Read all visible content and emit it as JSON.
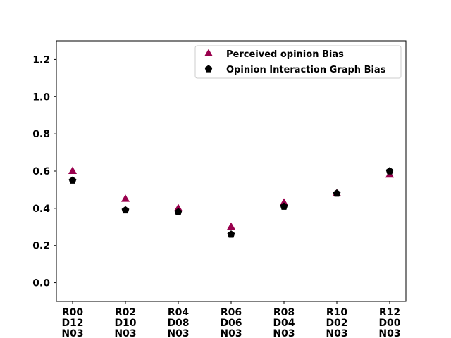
{
  "chart_data": {
    "type": "scatter",
    "categories": [
      [
        "R00",
        "D12",
        "N03"
      ],
      [
        "R02",
        "D10",
        "N03"
      ],
      [
        "R04",
        "D08",
        "N03"
      ],
      [
        "R06",
        "D06",
        "N03"
      ],
      [
        "R08",
        "D04",
        "N03"
      ],
      [
        "R10",
        "D02",
        "N03"
      ],
      [
        "R12",
        "D00",
        "N03"
      ]
    ],
    "series": [
      {
        "name": "Perceived opinion Bias",
        "marker": "triangle",
        "color": "#99004d",
        "values": [
          0.6,
          0.45,
          0.4,
          0.3,
          0.43,
          0.48,
          0.58
        ]
      },
      {
        "name": "Opinion Interaction Graph Bias",
        "marker": "pentagon",
        "color": "#000000",
        "values": [
          0.55,
          0.39,
          0.38,
          0.26,
          0.41,
          0.48,
          0.6
        ]
      }
    ],
    "ylim": [
      -0.1,
      1.3
    ],
    "yticks": [
      "0.0",
      "0.2",
      "0.4",
      "0.6",
      "0.8",
      "1.0",
      "1.2"
    ],
    "grid": false,
    "legend_position": "top-right"
  }
}
